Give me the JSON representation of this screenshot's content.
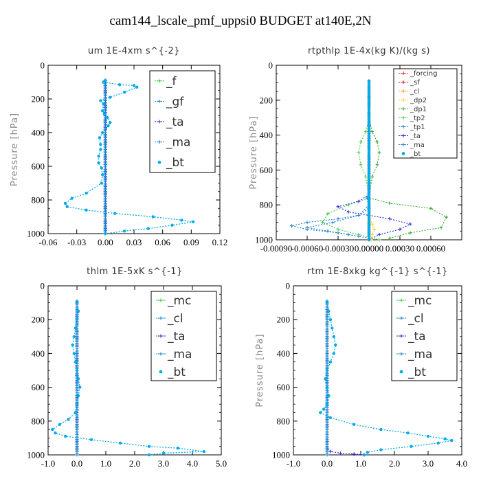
{
  "title": "cam144_lscale_pmf_uppsi0  BUDGET at140E,2N",
  "chart_data": [
    {
      "type": "line",
      "title": "um   1E-4xm s^{-2}",
      "ylabel": "Pressure [hPa]",
      "xlim": [
        -0.06,
        0.12
      ],
      "ylim": [
        1000,
        0
      ],
      "xticks": [
        "-0.06",
        "-0.03",
        "0.00",
        "0.03",
        "0.06",
        "0.09",
        "0.12"
      ],
      "xtick_values": [
        -0.06,
        -0.03,
        0.0,
        0.03,
        0.06,
        0.09,
        0.12
      ],
      "yticks": [
        "0",
        "200",
        "400",
        "600",
        "800",
        "1000"
      ],
      "ytick_values": [
        0,
        200,
        400,
        600,
        800,
        1000
      ],
      "legend": [
        "_f",
        "_gf",
        "_ta",
        "_ma",
        "_bt"
      ],
      "legend_size": "large",
      "series": [
        {
          "name": "_f",
          "color": "#22cc22",
          "zero": true
        },
        {
          "name": "_gf",
          "color": "#1a7fd0",
          "zero": true
        },
        {
          "name": "_ta",
          "color": "#2222dd",
          "zero": true
        },
        {
          "name": "_ma",
          "color": "#1a7fd0",
          "zero": true
        },
        {
          "name": "_bt",
          "color": "#00aaee",
          "x": [
            0.0,
            -0.002,
            0.015,
            0.03,
            0.033,
            0.02,
            0.005,
            -0.005,
            -0.002,
            -0.003,
            -0.001,
            0.002,
            0.005,
            0.003,
            -0.003,
            -0.006,
            -0.005,
            -0.005,
            -0.007,
            -0.007,
            -0.004,
            -0.003,
            -0.004,
            -0.02,
            -0.035,
            -0.042,
            -0.04,
            -0.02,
            0.01,
            0.05,
            0.08,
            0.092,
            0.07,
            0.045,
            0.02,
            0.0
          ],
          "p": [
            90,
            100,
            115,
            120,
            130,
            160,
            190,
            210,
            230,
            270,
            290,
            310,
            340,
            360,
            400,
            430,
            470,
            500,
            540,
            580,
            610,
            650,
            700,
            760,
            790,
            820,
            840,
            860,
            880,
            900,
            920,
            930,
            950,
            970,
            985,
            1000
          ]
        }
      ]
    },
    {
      "type": "line",
      "title": "rtpthlp   1E-4x(kg K)/(kg s)",
      "ylabel": "Pressure [hPa]",
      "xlim": [
        -0.0009,
        0.0009
      ],
      "ylim": [
        1000,
        0
      ],
      "xticks": [
        "-0.00090",
        "-0.00060",
        "-0.00030",
        "0.00000",
        "0.00030",
        "0.00060"
      ],
      "xtick_values": [
        -0.0009,
        -0.0006,
        -0.0003,
        0.0,
        0.0003,
        0.0006
      ],
      "yticks": [
        "0",
        "200",
        "400",
        "600",
        "800",
        "1000"
      ],
      "ytick_values": [
        0,
        200,
        400,
        600,
        800,
        1000
      ],
      "legend": [
        "_forcing",
        "_sf",
        "_cl",
        "_dp2",
        "_dp1",
        "_tp2",
        "_tp1",
        "_ta",
        "_ma",
        "_bt"
      ],
      "legend_size": "small",
      "series": [
        {
          "name": "_forcing",
          "color": "#dd2222",
          "zero": true
        },
        {
          "name": "_sf",
          "color": "#cc0000",
          "zero": true
        },
        {
          "name": "_cl",
          "color": "#ff8800",
          "zero": true
        },
        {
          "name": "_dp2",
          "color": "#ffcc00",
          "x": [
            0.0,
            0.0,
            1e-05,
            3e-05,
            5e-05,
            3e-05,
            2e-05
          ],
          "p": [
            800,
            850,
            880,
            910,
            940,
            970,
            1000
          ]
        },
        {
          "name": "_dp1",
          "color": "#22aa22",
          "x": [
            0.0,
            0.0,
            3e-05,
            8e-05,
            0.0001,
            8e-05,
            3e-05,
            0.0,
            0.0002,
            0.0006,
            0.00075,
            0.0007,
            0.0004,
            0.0002
          ],
          "p": [
            200,
            300,
            380,
            440,
            500,
            570,
            640,
            760,
            790,
            820,
            870,
            930,
            960,
            990
          ]
        },
        {
          "name": "_tp2",
          "color": "#44cc44",
          "x": [
            0.0,
            0.0,
            -3e-05,
            -8e-05,
            -0.0001,
            -8e-05,
            -3e-05,
            0.0,
            -0.0002,
            -0.0004,
            -0.00045,
            -0.0003,
            -0.0001,
            0.0001
          ],
          "p": [
            200,
            300,
            380,
            440,
            500,
            570,
            640,
            760,
            800,
            850,
            900,
            940,
            970,
            1000
          ]
        },
        {
          "name": "_tp1",
          "color": "#1a7fd0",
          "x": [
            0.0,
            -2e-05,
            0.0,
            -0.0001,
            -0.0003,
            -0.0006,
            -0.00075,
            -0.0006,
            -0.0003,
            -0.0001
          ],
          "p": [
            700,
            760,
            820,
            860,
            880,
            900,
            920,
            940,
            960,
            980
          ]
        },
        {
          "name": "_ta",
          "color": "#2222dd",
          "x": [
            0.0,
            -0.0001,
            -0.0003,
            -0.0002,
            0.0,
            0.0002,
            0.0004,
            0.0003,
            0.0001,
            0.0
          ],
          "p": [
            740,
            780,
            810,
            840,
            860,
            880,
            910,
            940,
            970,
            1000
          ]
        },
        {
          "name": "_ma",
          "color": "#1a7fd0",
          "x": [
            0.0,
            -0.0001,
            -0.00035,
            -0.0006,
            -0.0004,
            -0.0002,
            0.0
          ],
          "p": [
            800,
            860,
            900,
            930,
            950,
            970,
            990
          ]
        },
        {
          "name": "_bt",
          "color": "#00aaee",
          "zero": true
        }
      ]
    },
    {
      "type": "line",
      "title": "thlm   1E-5xK s^{-1}",
      "ylabel": "",
      "xlim": [
        -1.0,
        5.0
      ],
      "ylim": [
        1000,
        0
      ],
      "xticks": [
        "-1.0",
        "0.0",
        "1.0",
        "2.0",
        "3.0",
        "4.0",
        "5.0"
      ],
      "xtick_values": [
        -1.0,
        0.0,
        1.0,
        2.0,
        3.0,
        4.0,
        5.0
      ],
      "yticks": [
        "0",
        "200",
        "400",
        "600",
        "800",
        "1000"
      ],
      "ytick_values": [
        0,
        200,
        400,
        600,
        800,
        1000
      ],
      "legend": [
        "_mc",
        "_cl",
        "_ta",
        "_ma",
        "_bt"
      ],
      "legend_size": "large",
      "series": [
        {
          "name": "_mc",
          "color": "#22cc22",
          "zero": true
        },
        {
          "name": "_cl",
          "color": "#1a7fd0",
          "zero": true
        },
        {
          "name": "_ta",
          "color": "#2222dd",
          "zero": true
        },
        {
          "name": "_ma",
          "color": "#1a7fd0",
          "zero": true
        },
        {
          "name": "_bt",
          "color": "#00aaee",
          "x": [
            0.0,
            0.05,
            0.0,
            -0.05,
            -0.1,
            -0.15,
            -0.1,
            -0.05,
            0.0,
            0.05,
            0.1,
            0.05,
            0.0,
            -0.05,
            -0.3,
            -0.6,
            -0.85,
            -0.75,
            -0.4,
            0.5,
            1.5,
            2.5,
            3.5,
            4.4,
            3.0,
            2.5
          ],
          "p": [
            100,
            150,
            200,
            250,
            300,
            350,
            400,
            450,
            500,
            550,
            600,
            650,
            700,
            750,
            790,
            820,
            850,
            870,
            890,
            910,
            930,
            950,
            960,
            980,
            990,
            1000
          ]
        }
      ]
    },
    {
      "type": "line",
      "title": "rtm   1E-8xkg kg^{-1} s^{-1}",
      "ylabel": "Pressure [hPa]",
      "xlim": [
        -1.0,
        4.0
      ],
      "ylim": [
        1000,
        0
      ],
      "xticks": [
        "-1.0",
        "0.0",
        "1.0",
        "2.0",
        "3.0",
        "4.0"
      ],
      "xtick_values": [
        -1.0,
        0.0,
        1.0,
        2.0,
        3.0,
        4.0
      ],
      "yticks": [
        "0",
        "200",
        "400",
        "600",
        "800",
        "1000"
      ],
      "ytick_values": [
        0,
        200,
        400,
        600,
        800,
        1000
      ],
      "legend": [
        "_mc",
        "_cl",
        "_ta",
        "_ma",
        "_bt"
      ],
      "legend_size": "large",
      "series": [
        {
          "name": "_mc",
          "color": "#22cc22",
          "zero": true
        },
        {
          "name": "_cl",
          "color": "#1a7fd0",
          "zero": true
        },
        {
          "name": "_ta",
          "color": "#2222dd",
          "x": [
            0.0,
            0.0,
            0.0,
            0.1,
            0.4,
            0.8,
            1.1
          ],
          "p": [
            900,
            940,
            960,
            980,
            990,
            995,
            1000
          ]
        },
        {
          "name": "_ma",
          "color": "#1a7fd0",
          "zero": true
        },
        {
          "name": "_bt",
          "color": "#00aaee",
          "x": [
            0.0,
            0.05,
            0.1,
            0.15,
            0.2,
            0.25,
            0.2,
            0.1,
            0.0,
            -0.05,
            0.0,
            0.05,
            0.0,
            -0.1,
            -0.2,
            0.1,
            0.8,
            1.6,
            2.4,
            3.0,
            3.5,
            3.7,
            3.3,
            2.5,
            1.6,
            1.2,
            1.1
          ],
          "p": [
            100,
            150,
            200,
            250,
            300,
            350,
            400,
            450,
            500,
            550,
            600,
            650,
            700,
            730,
            750,
            780,
            820,
            850,
            870,
            890,
            905,
            915,
            930,
            950,
            970,
            985,
            1000
          ]
        }
      ]
    }
  ]
}
